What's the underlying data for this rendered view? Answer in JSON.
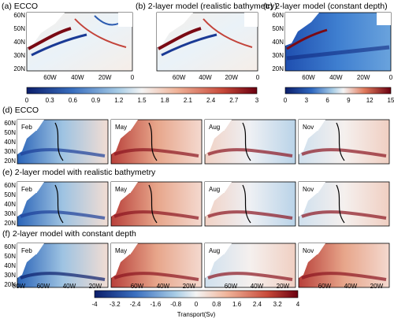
{
  "chart_data": {
    "type": "heatmap",
    "top_panels": [
      {
        "title": "(a) ECCO"
      },
      {
        "title": "(b) 2-layer model (realistic bathymetry)"
      },
      {
        "title": "(c) 2-layer model (constant depth)"
      }
    ],
    "top_lat_ticks": [
      "60N",
      "50N",
      "40N",
      "30N",
      "20N"
    ],
    "top_lon_ticks": [
      "60W",
      "40W",
      "20W",
      "0"
    ],
    "colorbar_ab": {
      "ticks": [
        "0",
        "0.3",
        "0.6",
        "0.9",
        "1.2",
        "1.5",
        "1.8",
        "2.1",
        "2.4",
        "2.7",
        "3"
      ],
      "range": [
        0,
        3
      ]
    },
    "colorbar_c": {
      "ticks": [
        "0",
        "3",
        "6",
        "9",
        "12",
        "15"
      ],
      "range": [
        0,
        15
      ]
    },
    "rows": [
      {
        "title": "(d) ECCO",
        "months": [
          "Feb",
          "May",
          "Aug",
          "Nov"
        ]
      },
      {
        "title": "(e) 2-layer model with realistic bathymetry",
        "months": [
          "Feb",
          "May",
          "Aug",
          "Nov"
        ]
      },
      {
        "title": "(f) 2-layer model with constant depth",
        "months": [
          "Feb",
          "May",
          "Aug",
          "Nov"
        ]
      }
    ],
    "row_lat_ticks": [
      "60N",
      "50N",
      "40N",
      "30N",
      "20N"
    ],
    "bottom_lon_ticks": [
      "80W",
      "60W",
      "40W",
      "20W"
    ],
    "colorbar_bottom": {
      "ticks": [
        "-4",
        "-3.2",
        "-2.4",
        "-1.6",
        "-0.8",
        "0",
        "0.8",
        "1.6",
        "2.4",
        "3.2",
        "4"
      ],
      "range": [
        -4,
        4
      ],
      "label": "Transport(Sv)"
    }
  }
}
